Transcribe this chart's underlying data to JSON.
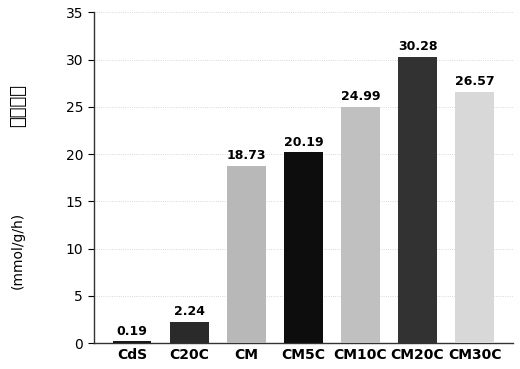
{
  "categories": [
    "CdS",
    "C20C",
    "CM",
    "CM5C",
    "CM10C",
    "CM20C",
    "CM30C"
  ],
  "values": [
    0.19,
    2.24,
    18.73,
    20.19,
    24.99,
    30.28,
    26.57
  ],
  "bar_colors": [
    "#1a1a1a",
    "#2a2a2a",
    "#b8b8b8",
    "#0d0d0d",
    "#c0c0c0",
    "#323232",
    "#d8d8d8"
  ],
  "ylabel_chinese": "产氢速率",
  "ylabel_unit": "(mmol/g/h)",
  "ylim": [
    0,
    35
  ],
  "yticks": [
    0,
    5,
    10,
    15,
    20,
    25,
    30,
    35
  ],
  "background_color": "#ffffff",
  "plot_bg_color": "#ffffff",
  "grid_color": "#cccccc",
  "label_fontsize": 10,
  "value_fontsize": 9,
  "ylabel_fontsize": 13,
  "ylabel_unit_fontsize": 10
}
